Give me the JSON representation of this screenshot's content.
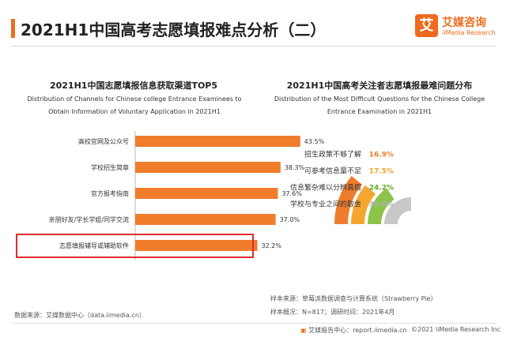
{
  "header": {
    "title": "2021H1中国高考志愿填报难点分析（二）",
    "accent_color": "#ee6b1e"
  },
  "logo": {
    "mark": "艾",
    "name_cn": "艾媒咨询",
    "name_en": "iiMedia Research",
    "color": "#ee6b1e"
  },
  "chart_data": [
    {
      "type": "bar",
      "orientation": "horizontal",
      "title": "2021H1中国志愿填报信息获取渠道TOP5",
      "subtitle_en": "Distribution of Channels for Chinese college Entrance Examinees to Obtain Information of Voluntary Application in 2021H1",
      "categories": [
        "高校官网及公众号",
        "学校招生简章",
        "官方报考指南",
        "亲朋好友/学长学姐/同学交流",
        "志愿填报辅导或辅助软件"
      ],
      "values": [
        43.5,
        38.3,
        37.6,
        37.0,
        32.2
      ],
      "value_labels": [
        "43.5%",
        "38.3%",
        "37.6%",
        "37.0%",
        "32.2%"
      ],
      "xlim": [
        0,
        50
      ],
      "highlighted_index": 4,
      "bar_color": "#f07c2c",
      "highlight_color": "#e02b2b",
      "grid": false
    },
    {
      "type": "radial_bar",
      "title": "2021H1中国高考关注者志愿填报最难问题分布",
      "subtitle_en": "Distribution of the Most Difficult Questions for the Chinese College Entrance Examination in 2021H1",
      "categories": [
        "招生政策不够了解",
        "可参考信息量不足",
        "信息繁杂难以分辨真假",
        "学校与专业之间的取舍"
      ],
      "values": [
        16.9,
        17.5,
        24.2,
        39.0
      ],
      "value_labels": [
        "16.9%",
        "17.5%",
        "24.2%",
        "39.0%"
      ],
      "colors": [
        "#ef7d2d",
        "#f4a72e",
        "#8cc44a",
        "#c8c8c8"
      ],
      "value_colors": [
        "#ef7d2d",
        "#f4a72e",
        "#62a92f",
        "#b0b0b0"
      ]
    }
  ],
  "footer": {
    "data_source": "数据来源：艾媒数据中心（data.iimedia.cn）",
    "sample_source": "样本来源：草莓派数据调查与计算系统（Strawberry Pie）",
    "sample_info": "样本概况：N=817；调研时间：2021年4月",
    "report_center": "艾媒报告中心：report.iimedia.cn",
    "copyright": "©2021  iiMedia Research  Inc"
  }
}
